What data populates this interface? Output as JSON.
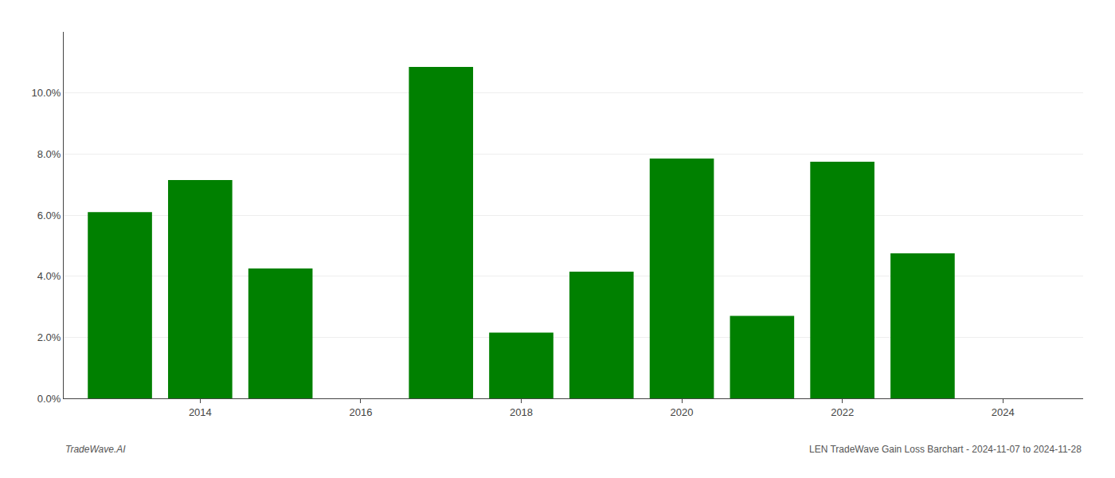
{
  "chart_data": {
    "type": "bar",
    "x": [
      2013,
      2014,
      2015,
      2017,
      2018,
      2019,
      2020,
      2021,
      2022,
      2023,
      2024
    ],
    "values": [
      0.061,
      0.0715,
      0.0425,
      0.1085,
      0.0215,
      0.0415,
      0.0785,
      0.027,
      0.0775,
      0.0475,
      0.0
    ],
    "color": "#008000",
    "xlim": [
      2012.3,
      2025.0
    ],
    "xticks": [
      2014,
      2016,
      2018,
      2020,
      2022,
      2024
    ],
    "ylim": [
      0,
      0.12
    ],
    "yticks": [
      {
        "value": 0.0,
        "label": "0.0%"
      },
      {
        "value": 0.02,
        "label": "2.0%"
      },
      {
        "value": 0.04,
        "label": "4.0%"
      },
      {
        "value": 0.06,
        "label": "6.0%"
      },
      {
        "value": 0.08,
        "label": "8.0%"
      },
      {
        "value": 0.1,
        "label": "10.0%"
      }
    ],
    "grid": true,
    "annotations": [
      "TradeWave.AI",
      "LEN TradeWave Gain Loss Barchart - 2024-11-07 to 2024-11-28"
    ]
  }
}
